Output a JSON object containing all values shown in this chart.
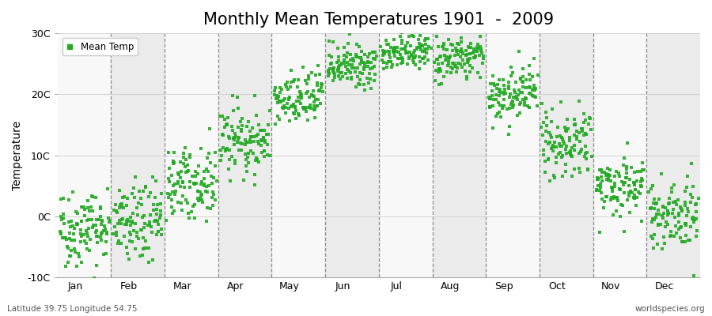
{
  "title": "Monthly Mean Temperatures 1901  -  2009",
  "ylabel": "Temperature",
  "footer_left": "Latitude 39.75 Longitude 54.75",
  "footer_right": "worldspecies.org",
  "legend_label": "Mean Temp",
  "ylim": [
    -10,
    30
  ],
  "yticks": [
    -10,
    0,
    10,
    20,
    30
  ],
  "ytick_labels": [
    "-10C",
    "0C",
    "10C",
    "20C",
    "30C"
  ],
  "months": [
    "Jan",
    "Feb",
    "Mar",
    "Apr",
    "May",
    "Jun",
    "Jul",
    "Aug",
    "Sep",
    "Oct",
    "Nov",
    "Dec"
  ],
  "dot_color": "#22aa22",
  "bg_color": "#ffffff",
  "plot_bg_color": "#ebebeb",
  "alt_band_color": "#f8f8f8",
  "title_fontsize": 15,
  "label_fontsize": 10,
  "tick_fontsize": 9,
  "n_years": 109,
  "monthly_means": [
    -1.8,
    -1.2,
    5.5,
    12.5,
    19.0,
    24.5,
    27.0,
    26.0,
    20.0,
    12.0,
    5.0,
    0.5
  ],
  "monthly_stds": [
    3.2,
    3.2,
    2.8,
    2.8,
    2.2,
    1.8,
    1.5,
    1.8,
    2.2,
    2.5,
    2.5,
    3.0
  ],
  "month_x_centers": [
    0.5,
    1.5,
    2.5,
    3.5,
    4.5,
    5.5,
    6.5,
    7.5,
    8.5,
    9.5,
    10.5,
    11.5
  ],
  "dashed_line_positions": [
    1,
    2,
    3,
    4,
    5,
    6,
    7,
    8,
    9,
    10,
    11
  ]
}
